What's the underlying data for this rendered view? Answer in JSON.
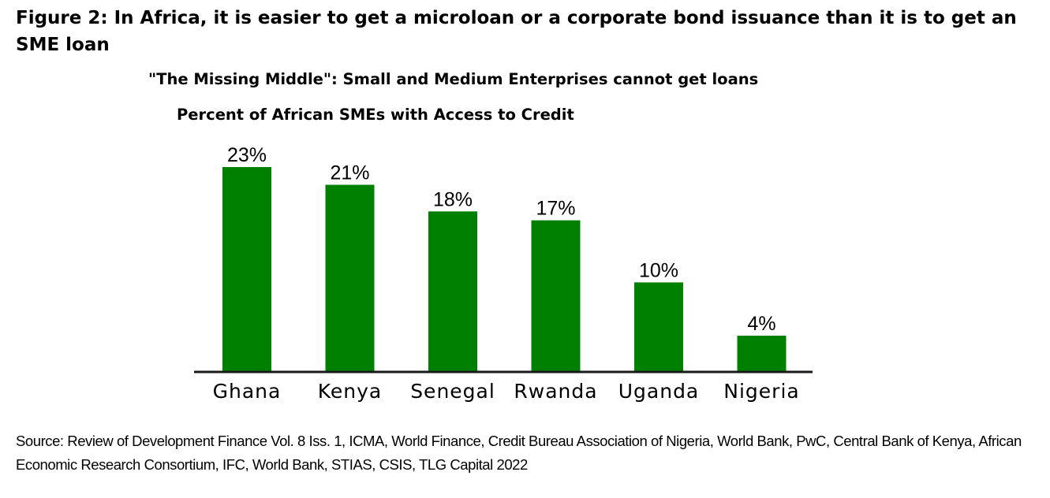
{
  "figure_title": "Figure 2: In Africa, it is easier to get a microloan or a corporate bond issuance than it is to get an SME loan",
  "subtitle": "\"The Missing Middle\": Small and Medium Enterprises cannot get loans",
  "source": "Source: Review of Development Finance Vol. 8 Iss. 1, ICMA, World Finance, Credit Bureau Association of Nigeria, World Bank, PwC, Central Bank of Kenya, African Economic Research Consortium, IFC, World Bank, STIAS, CSIS, TLG Capital 2022",
  "chart_data": {
    "type": "bar",
    "title": "Percent of African SMEs with Access to Credit",
    "categories": [
      "Ghana",
      "Kenya",
      "Senegal",
      "Rwanda",
      "Uganda",
      "Nigeria"
    ],
    "values": [
      23,
      21,
      18,
      17,
      10,
      4
    ],
    "data_labels": [
      "23%",
      "21%",
      "18%",
      "17%",
      "10%",
      "4%"
    ],
    "xlabel": "",
    "ylabel": "",
    "ylim": [
      0,
      23
    ],
    "grid": false,
    "legend": "none",
    "bar_color": "#008000"
  }
}
